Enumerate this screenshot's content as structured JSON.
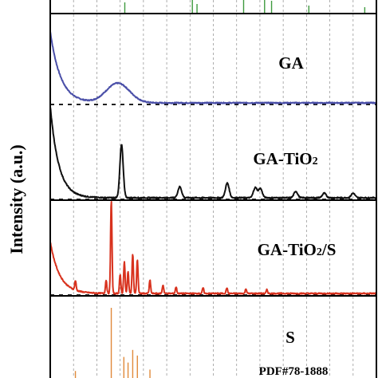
{
  "chart_data": {
    "type": "line",
    "title": "",
    "xlabel": "",
    "ylabel": "Intensity (a.u.)",
    "x_range": [
      10,
      80
    ],
    "grid": "vertical dashed lines",
    "panels": [
      {
        "name": "top reference",
        "label": "",
        "color": "#3f9a3f",
        "kind": "stick",
        "peaks": [
          {
            "x": 26.0,
            "h": 0.7
          },
          {
            "x": 40.5,
            "h": 1.0
          },
          {
            "x": 41.5,
            "h": 0.6
          },
          {
            "x": 51.5,
            "h": 0.9
          },
          {
            "x": 56.0,
            "h": 1.0
          },
          {
            "x": 57.5,
            "h": 0.8
          },
          {
            "x": 65.5,
            "h": 0.5
          },
          {
            "x": 77.5,
            "h": 0.4
          }
        ]
      },
      {
        "name": "GA",
        "label": "GA",
        "color": "#4a4fa8",
        "kind": "pattern",
        "baseline_drop": 0.8,
        "decay_rate": 0.45,
        "peaks": [
          {
            "x": 24.5,
            "h": 0.22,
            "w": 2.5
          }
        ]
      },
      {
        "name": "GA-TiO2",
        "label_main": "GA-TiO",
        "label_sub": "2",
        "color": "#111111",
        "kind": "pattern",
        "baseline_drop": 1.0,
        "decay_rate": 0.55,
        "peaks": [
          {
            "x": 25.3,
            "h": 0.58,
            "w": 0.35
          },
          {
            "x": 37.8,
            "h": 0.12,
            "w": 0.4
          },
          {
            "x": 48.0,
            "h": 0.16,
            "w": 0.4
          },
          {
            "x": 54.0,
            "h": 0.11,
            "w": 0.4
          },
          {
            "x": 55.1,
            "h": 0.1,
            "w": 0.4
          },
          {
            "x": 62.7,
            "h": 0.07,
            "w": 0.4
          },
          {
            "x": 68.8,
            "h": 0.05,
            "w": 0.4
          },
          {
            "x": 75.0,
            "h": 0.05,
            "w": 0.4
          }
        ]
      },
      {
        "name": "GA-TiO2/S",
        "label_main": "GA-TiO",
        "label_sub": "2",
        "label_tail": "/S",
        "color": "#d8321e",
        "kind": "pattern",
        "baseline_drop": 0.55,
        "decay_rate": 0.5,
        "peaks": [
          {
            "x": 15.4,
            "h": 0.1,
            "w": 0.15
          },
          {
            "x": 22.0,
            "h": 0.14,
            "w": 0.15
          },
          {
            "x": 23.1,
            "h": 1.0,
            "w": 0.15
          },
          {
            "x": 25.0,
            "h": 0.2,
            "w": 0.15
          },
          {
            "x": 25.9,
            "h": 0.34,
            "w": 0.15
          },
          {
            "x": 26.7,
            "h": 0.23,
            "w": 0.15
          },
          {
            "x": 27.7,
            "h": 0.42,
            "w": 0.15
          },
          {
            "x": 28.7,
            "h": 0.36,
            "w": 0.15
          },
          {
            "x": 31.4,
            "h": 0.14,
            "w": 0.15
          },
          {
            "x": 34.2,
            "h": 0.09,
            "w": 0.15
          },
          {
            "x": 37.0,
            "h": 0.07,
            "w": 0.15
          },
          {
            "x": 42.8,
            "h": 0.06,
            "w": 0.15
          },
          {
            "x": 47.9,
            "h": 0.06,
            "w": 0.15
          },
          {
            "x": 52.0,
            "h": 0.05,
            "w": 0.15
          },
          {
            "x": 56.5,
            "h": 0.04,
            "w": 0.15
          }
        ]
      },
      {
        "name": "S reference",
        "label": "S",
        "note": "PDF#78-1888",
        "color": "#e08a3a",
        "kind": "stick",
        "peaks": [
          {
            "x": 15.4,
            "h": 0.1
          },
          {
            "x": 23.1,
            "h": 1.0
          },
          {
            "x": 25.8,
            "h": 0.3
          },
          {
            "x": 26.7,
            "h": 0.22
          },
          {
            "x": 27.7,
            "h": 0.4
          },
          {
            "x": 28.7,
            "h": 0.32
          },
          {
            "x": 31.4,
            "h": 0.12
          }
        ]
      }
    ],
    "gridlines_x": [
      15,
      20,
      25,
      30,
      35,
      40,
      45,
      50,
      55,
      60,
      65,
      70,
      75
    ],
    "separators": "dotted horizontal baselines"
  }
}
